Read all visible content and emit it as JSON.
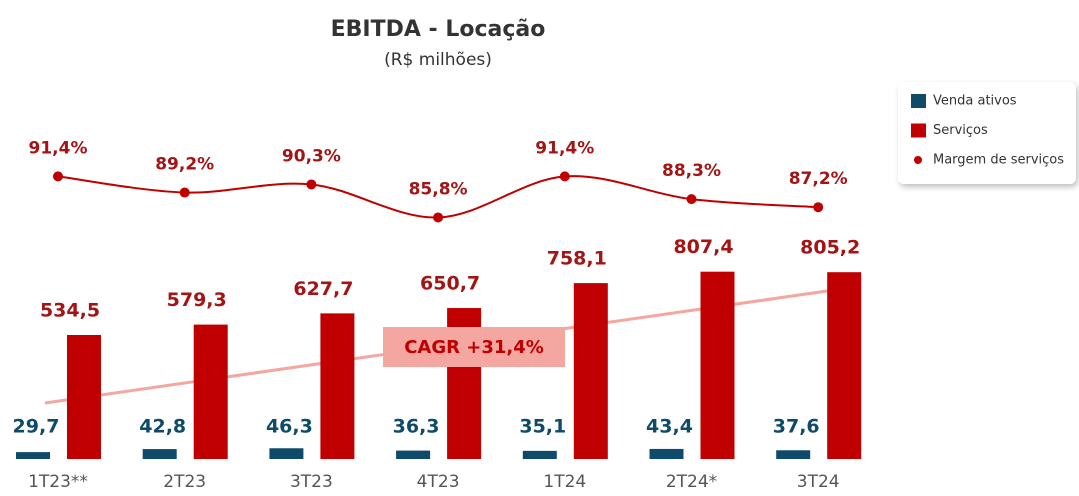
{
  "chart_data": {
    "type": "bar",
    "title": "EBITDA - Locação",
    "subtitle": "(R$ milhões)",
    "categories": [
      "1T23**",
      "2T23",
      "3T23",
      "4T23",
      "1T24",
      "2T24*",
      "3T24"
    ],
    "series": [
      {
        "name": "Venda ativos",
        "color": "#0e4a6a",
        "values": [
          29.7,
          42.8,
          46.3,
          36.3,
          35.1,
          43.4,
          37.6
        ],
        "value_labels": [
          "29,7",
          "42,8",
          "46,3",
          "36,3",
          "35,1",
          "43,4",
          "37,6"
        ]
      },
      {
        "name": "Serviços",
        "color": "#c00000",
        "values": [
          534.5,
          579.3,
          627.7,
          650.7,
          758.1,
          807.4,
          805.2
        ],
        "value_labels": [
          "534,5",
          "579,3",
          "627,7",
          "650,7",
          "758,1",
          "807,4",
          "805,2"
        ]
      },
      {
        "name": "Margem de serviços",
        "type": "line",
        "axis": "y2",
        "color": "#c00000",
        "values": [
          91.4,
          89.2,
          90.3,
          85.8,
          91.4,
          88.3,
          87.2
        ],
        "value_labels": [
          "91,4%",
          "89,2%",
          "90,3%",
          "85,8%",
          "91,4%",
          "88,3%",
          "87,2%"
        ]
      }
    ],
    "ylim": [
      0,
      1000
    ],
    "y2lim": [
      80,
      95
    ],
    "annotation": "CAGR +31,4%",
    "legend": "top-right"
  }
}
